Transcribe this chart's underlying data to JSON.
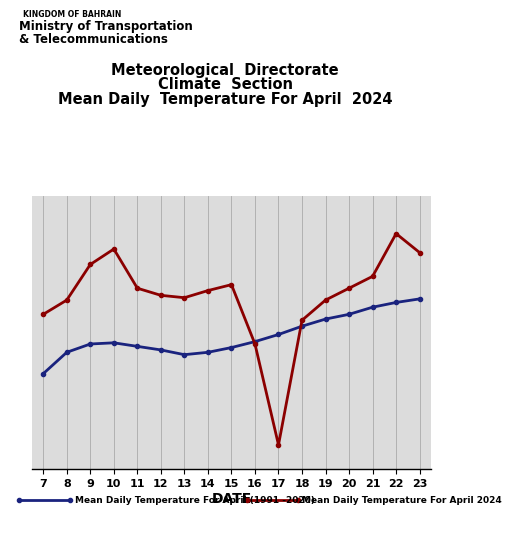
{
  "title_line1": "Meteorological  Directorate",
  "title_line2": "Climate  Section",
  "title_line3": "Mean Daily  Temperature For April  2024",
  "xlabel": "DATE",
  "header_line1": "KINGDOM OF BAHRAIN",
  "header_line2": "Ministry of Transportation",
  "header_line3": "& Telecommunications",
  "legend_label1": "Mean Daily Temperature For April (1991 -2020)",
  "legend_label2": "Mean Daily Temperature For April 2024",
  "bg_color": "#dcdcdc",
  "grid_color": "#aaaaaa",
  "line1_color": "#1a237e",
  "line2_color": "#8b0000",
  "days": [
    7,
    8,
    9,
    10,
    11,
    12,
    13,
    14,
    15,
    16,
    17,
    18,
    19,
    20,
    21,
    22,
    23
  ],
  "temp_1991_2020": [
    23.0,
    24.8,
    25.5,
    25.6,
    25.3,
    25.0,
    24.6,
    24.8,
    25.2,
    25.7,
    26.3,
    27.0,
    27.6,
    28.0,
    28.6,
    29.0,
    29.3
  ],
  "temp_2024": [
    28.0,
    29.2,
    32.2,
    33.5,
    30.2,
    29.6,
    29.4,
    30.0,
    30.5,
    25.5,
    17.0,
    27.5,
    29.2,
    30.2,
    31.2,
    34.8,
    33.2
  ],
  "ylim_min": 15,
  "ylim_max": 38,
  "xlim_min": 6.5,
  "xlim_max": 23.5,
  "title_fontsize": 10.5,
  "line_width": 2.0,
  "legend_fontsize": 7.0
}
